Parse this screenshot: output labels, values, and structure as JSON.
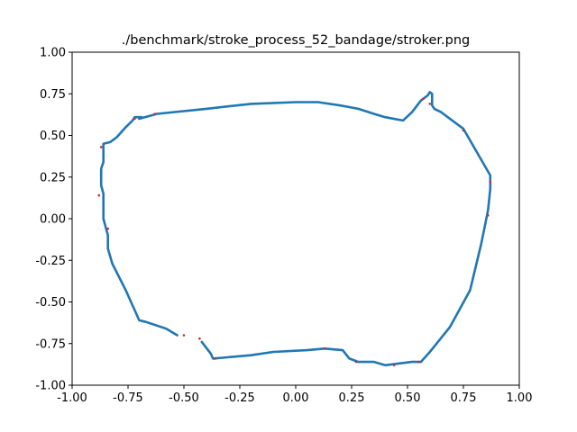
{
  "chart_data": {
    "type": "line",
    "title": "./benchmark/stroke_process_52_bandage/stroker.png",
    "xlabel": "",
    "ylabel": "",
    "xlim": [
      -1.0,
      1.0
    ],
    "ylim": [
      -1.0,
      1.0
    ],
    "x_ticks": [
      "-1.00",
      "-0.75",
      "-0.50",
      "-0.25",
      "0.00",
      "0.25",
      "0.50",
      "0.75",
      "1.00"
    ],
    "y_ticks": [
      "-1.00",
      "-0.75",
      "-0.50",
      "-0.25",
      "0.00",
      "0.25",
      "0.50",
      "0.75",
      "1.00"
    ],
    "grid": false,
    "series_color": "#1f77b4",
    "marker_color": "#d62728",
    "series": [
      {
        "x": [
          -0.7,
          -0.62,
          -0.4,
          -0.2,
          0.0,
          0.1,
          0.2,
          0.28,
          0.35,
          0.4,
          0.48,
          0.52,
          0.56,
          0.59,
          0.6,
          0.61,
          0.61,
          0.62,
          0.65,
          0.75,
          0.87,
          0.87,
          0.86,
          0.83,
          0.78,
          0.69,
          0.6,
          0.56,
          0.52,
          0.46,
          0.4,
          0.35,
          0.28,
          0.24,
          0.21,
          0.13,
          0.05,
          -0.1,
          -0.2,
          -0.37,
          -0.38,
          -0.42
        ],
        "y": [
          0.6,
          0.63,
          0.66,
          0.69,
          0.7,
          0.7,
          0.68,
          0.66,
          0.63,
          0.61,
          0.59,
          0.64,
          0.71,
          0.74,
          0.76,
          0.75,
          0.68,
          0.66,
          0.64,
          0.54,
          0.26,
          0.18,
          0.05,
          -0.15,
          -0.43,
          -0.65,
          -0.8,
          -0.86,
          -0.86,
          -0.87,
          -0.88,
          -0.86,
          -0.86,
          -0.84,
          -0.79,
          -0.78,
          -0.79,
          -0.8,
          -0.82,
          -0.84,
          -0.81,
          -0.74
        ]
      },
      {
        "x": [
          -0.53,
          -0.58,
          -0.67,
          -0.7,
          -0.76,
          -0.82,
          -0.84,
          -0.84,
          -0.85,
          -0.86,
          -0.86,
          -0.87,
          -0.87,
          -0.86,
          -0.86,
          -0.86,
          -0.83,
          -0.8,
          -0.76,
          -0.73,
          -0.72,
          -0.69
        ],
        "y": [
          -0.7,
          -0.66,
          -0.62,
          -0.61,
          -0.43,
          -0.27,
          -0.18,
          -0.1,
          -0.05,
          0.0,
          0.15,
          0.2,
          0.3,
          0.34,
          0.44,
          0.45,
          0.46,
          0.49,
          0.55,
          0.59,
          0.61,
          0.61
        ]
      }
    ],
    "markers": [
      {
        "x": -0.88,
        "y": 0.14
      },
      {
        "x": -0.87,
        "y": 0.43
      },
      {
        "x": -0.84,
        "y": -0.06
      },
      {
        "x": -0.72,
        "y": 0.6
      },
      {
        "x": -0.63,
        "y": 0.63
      },
      {
        "x": -0.5,
        "y": -0.7
      },
      {
        "x": -0.43,
        "y": -0.72
      },
      {
        "x": -0.36,
        "y": -0.84
      },
      {
        "x": 0.13,
        "y": -0.78
      },
      {
        "x": 0.27,
        "y": -0.86
      },
      {
        "x": 0.44,
        "y": -0.88
      },
      {
        "x": 0.55,
        "y": -0.86
      },
      {
        "x": 0.57,
        "y": 0.72
      },
      {
        "x": 0.6,
        "y": 0.69
      },
      {
        "x": 0.75,
        "y": 0.53
      },
      {
        "x": 0.87,
        "y": 0.22
      },
      {
        "x": 0.86,
        "y": 0.02
      }
    ]
  }
}
